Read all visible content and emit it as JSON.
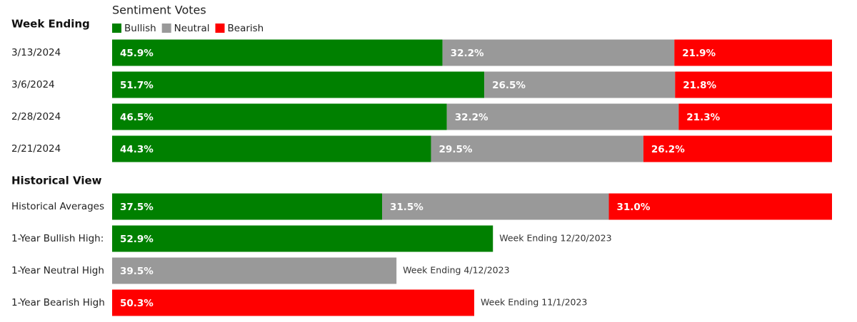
{
  "chart_data": [
    {
      "type": "bar",
      "orientation": "horizontal",
      "stacked": true,
      "title": "Sentiment Votes",
      "category_header": "Week Ending",
      "categories": [
        "3/13/2024",
        "3/6/2024",
        "2/28/2024",
        "2/21/2024"
      ],
      "legend": true,
      "series": [
        {
          "name": "Bullish",
          "color": "#008000",
          "values": [
            45.9,
            51.7,
            46.5,
            44.3
          ],
          "value_labels": [
            "45.9%",
            "51.7%",
            "46.5%",
            "44.3%"
          ]
        },
        {
          "name": "Neutral",
          "color": "#999999",
          "values": [
            32.2,
            26.5,
            32.2,
            29.5
          ],
          "value_labels": [
            "32.2%",
            "26.5%",
            "32.2%",
            "29.5%"
          ]
        },
        {
          "name": "Bearish",
          "color": "#ff0000",
          "values": [
            21.9,
            21.8,
            21.3,
            26.2
          ],
          "value_labels": [
            "21.9%",
            "21.8%",
            "21.3%",
            "26.2%"
          ]
        }
      ]
    },
    {
      "type": "bar",
      "orientation": "horizontal",
      "stacked": true,
      "category_header": "Historical View",
      "categories": [
        "Historical Averages",
        "1-Year Bullish High:",
        "1-Year Neutral High",
        "1-Year Bearish High"
      ],
      "legend": false,
      "series": [
        {
          "color": "#008000",
          "values": [
            37.5,
            52.9,
            null,
            null
          ],
          "value_labels": [
            "37.5%",
            "52.9%",
            null,
            null
          ]
        },
        {
          "color": "#999999",
          "values": [
            31.5,
            null,
            39.5,
            null
          ],
          "value_labels": [
            "31.5%",
            null,
            "39.5%",
            null
          ]
        },
        {
          "color": "#ff0000",
          "values": [
            31.0,
            null,
            null,
            50.3
          ],
          "value_labels": [
            "31.0%",
            null,
            null,
            "50.3%"
          ]
        }
      ],
      "annotations": [
        null,
        "Week Ending 12/20/2023",
        "Week Ending 4/12/2023",
        "Week Ending 11/1/2023"
      ]
    }
  ]
}
